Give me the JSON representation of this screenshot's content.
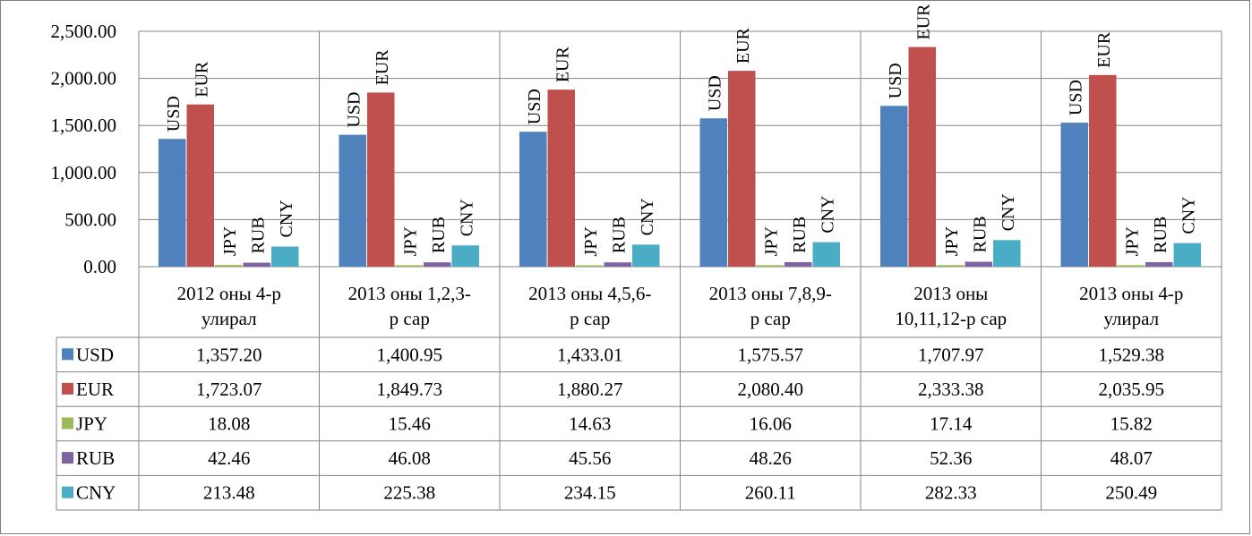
{
  "chart_data": {
    "type": "bar",
    "categories": [
      [
        "2012 оны 4-р",
        "улирал"
      ],
      [
        "2013 оны 1,2,3-",
        "р сар"
      ],
      [
        "2013 оны 4,5,6-",
        "р сар"
      ],
      [
        "2013 оны 7,8,9-",
        "р сар"
      ],
      [
        "2013 оны",
        "10,11,12-р сар"
      ],
      [
        "2013 оны 4-р",
        "улирал"
      ]
    ],
    "series": [
      {
        "name": "USD",
        "color": "#4f81bd",
        "values": [
          1357.2,
          1400.95,
          1433.01,
          1575.57,
          1707.97,
          1529.38
        ],
        "display": [
          "1,357.20",
          "1,400.95",
          "1,433.01",
          "1,575.57",
          "1,707.97",
          "1,529.38"
        ]
      },
      {
        "name": "EUR",
        "color": "#c0504d",
        "values": [
          1723.07,
          1849.73,
          1880.27,
          2080.4,
          2333.38,
          2035.95
        ],
        "display": [
          "1,723.07",
          "1,849.73",
          "1,880.27",
          "2,080.40",
          "2,333.38",
          "2,035.95"
        ]
      },
      {
        "name": "JPY",
        "color": "#9bbb59",
        "values": [
          18.08,
          15.46,
          14.63,
          16.06,
          17.14,
          15.82
        ],
        "display": [
          "18.08",
          "15.46",
          "14.63",
          "16.06",
          "17.14",
          "15.82"
        ]
      },
      {
        "name": "RUB",
        "color": "#8064a2",
        "values": [
          42.46,
          46.08,
          45.56,
          48.26,
          52.36,
          48.07
        ],
        "display": [
          "42.46",
          "46.08",
          "45.56",
          "48.26",
          "52.36",
          "48.07"
        ]
      },
      {
        "name": "CNY",
        "color": "#4bacc6",
        "values": [
          213.48,
          225.38,
          234.15,
          260.11,
          282.33,
          250.49
        ],
        "display": [
          "213.48",
          "225.38",
          "234.15",
          "260.11",
          "282.33",
          "250.49"
        ]
      }
    ],
    "ylim": [
      0,
      2500
    ],
    "yticks": [
      "0.00",
      "500.00",
      "1,000.00",
      "1,500.00",
      "2,000.00",
      "2,500.00"
    ],
    "data_labels": "series-name-vertical",
    "legend": "data-table",
    "grid": true
  }
}
